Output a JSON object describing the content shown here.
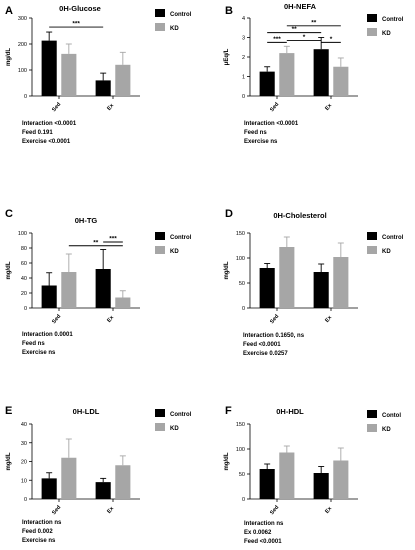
{
  "chart_data": [
    {
      "type": "bar",
      "panel_label": "A",
      "title": "0H-Glucose",
      "ylabel": "mg/dL",
      "ylim": [
        0,
        300
      ],
      "yticks": [
        0,
        100,
        200,
        300
      ],
      "categories": [
        "Sed",
        "Ex"
      ],
      "series": [
        {
          "name": "Control",
          "color": "#000000",
          "values": [
            213,
            60
          ],
          "errors": [
            33,
            28
          ]
        },
        {
          "name": "KD",
          "color": "#a6a6a6",
          "values": [
            162,
            120
          ],
          "errors": [
            38,
            48
          ]
        }
      ],
      "significance": [
        {
          "label": "***",
          "from": [
            0,
            0
          ],
          "to": [
            1,
            0
          ],
          "level": 265
        }
      ],
      "stats": [
        "Interaction <0.0001",
        "Feed 0.191",
        "Exercise <0.0001"
      ]
    },
    {
      "type": "bar",
      "panel_label": "B",
      "title": "0H-NEFA",
      "ylabel": "μEq/L",
      "ylim": [
        0,
        4
      ],
      "yticks": [
        0,
        1,
        2,
        3,
        4
      ],
      "categories": [
        "Sed",
        "Ex"
      ],
      "series": [
        {
          "name": "Control",
          "color": "#000000",
          "values": [
            1.25,
            2.4
          ],
          "errors": [
            0.25,
            0.6
          ]
        },
        {
          "name": "KD",
          "color": "#a6a6a6",
          "values": [
            2.2,
            1.5
          ],
          "errors": [
            0.35,
            0.45
          ]
        }
      ],
      "significance": [
        {
          "label": "***",
          "from": [
            0,
            0
          ],
          "to": [
            0,
            1
          ],
          "level": 2.75
        },
        {
          "label": "*",
          "from": [
            0,
            1
          ],
          "to": [
            1,
            0
          ],
          "level": 2.85
        },
        {
          "label": "**",
          "from": [
            0,
            0
          ],
          "to": [
            1,
            0
          ],
          "level": 3.25
        },
        {
          "label": "**",
          "from": [
            0,
            1
          ],
          "to": [
            1,
            1
          ],
          "level": 3.6
        },
        {
          "label": "*",
          "from": [
            1,
            0
          ],
          "to": [
            1,
            1
          ],
          "level": 2.75
        }
      ],
      "stats": [
        "Interaction <0.0001",
        "Feed ns",
        "Exercise ns"
      ]
    },
    {
      "type": "bar",
      "panel_label": "C",
      "title": "0H-TG",
      "ylabel": "mg/dL",
      "ylim": [
        0,
        100
      ],
      "yticks": [
        0,
        20,
        40,
        60,
        80,
        100
      ],
      "categories": [
        "Sed",
        "Ex"
      ],
      "series": [
        {
          "name": "Control",
          "color": "#000000",
          "values": [
            30,
            52
          ],
          "errors": [
            17,
            26
          ]
        },
        {
          "name": "KD",
          "color": "#a6a6a6",
          "values": [
            48,
            14
          ],
          "errors": [
            24,
            9
          ]
        }
      ],
      "significance": [
        {
          "label": "**",
          "from": [
            0,
            1
          ],
          "to": [
            1,
            1
          ],
          "level": 83
        },
        {
          "label": "***",
          "from": [
            1,
            0
          ],
          "to": [
            1,
            1
          ],
          "level": 88
        }
      ],
      "stats": [
        "Interaction 0.0001",
        "Feed ns",
        "Exercise ns"
      ]
    },
    {
      "type": "bar",
      "panel_label": "D",
      "title": "0H-Cholesterol",
      "ylabel": "mg/dL",
      "ylim": [
        0,
        150
      ],
      "yticks": [
        0,
        50,
        100,
        150
      ],
      "categories": [
        "Sed",
        "Ex"
      ],
      "series": [
        {
          "name": "Control",
          "color": "#000000",
          "values": [
            80,
            72
          ],
          "errors": [
            9,
            16
          ]
        },
        {
          "name": "KD",
          "color": "#a6a6a6",
          "values": [
            122,
            102
          ],
          "errors": [
            20,
            28
          ]
        }
      ],
      "significance": [],
      "stats": [
        "Interaction 0.1650, ns",
        "Feed <0.0001",
        "Exercise 0.0257"
      ]
    },
    {
      "type": "bar",
      "panel_label": "E",
      "title": "0H-LDL",
      "ylabel": "mg/dL",
      "ylim": [
        0,
        40
      ],
      "yticks": [
        0,
        10,
        20,
        30,
        40
      ],
      "categories": [
        "Sed",
        "Ex"
      ],
      "series": [
        {
          "name": "Control",
          "color": "#000000",
          "values": [
            11,
            9
          ],
          "errors": [
            3,
            2
          ]
        },
        {
          "name": "KD",
          "color": "#a6a6a6",
          "values": [
            22,
            18
          ],
          "errors": [
            10,
            5
          ]
        }
      ],
      "significance": [],
      "stats": [
        "Interaction ns",
        "Feed 0.002",
        "Exercise ns"
      ]
    },
    {
      "type": "bar",
      "panel_label": "F",
      "title": "0H-HDL",
      "ylabel": "mg/dL",
      "ylim": [
        0,
        150
      ],
      "yticks": [
        0,
        50,
        100,
        150
      ],
      "categories": [
        "Sed",
        "Ex"
      ],
      "series": [
        {
          "name": "Contol",
          "color": "#000000",
          "values": [
            60,
            52
          ],
          "errors": [
            10,
            13
          ]
        },
        {
          "name": "KD",
          "color": "#a6a6a6",
          "values": [
            93,
            77
          ],
          "errors": [
            13,
            25
          ]
        }
      ],
      "significance": [],
      "stats": [
        "Interaction ns",
        "Ex 0.0062",
        "Feed <0.0001"
      ]
    }
  ]
}
